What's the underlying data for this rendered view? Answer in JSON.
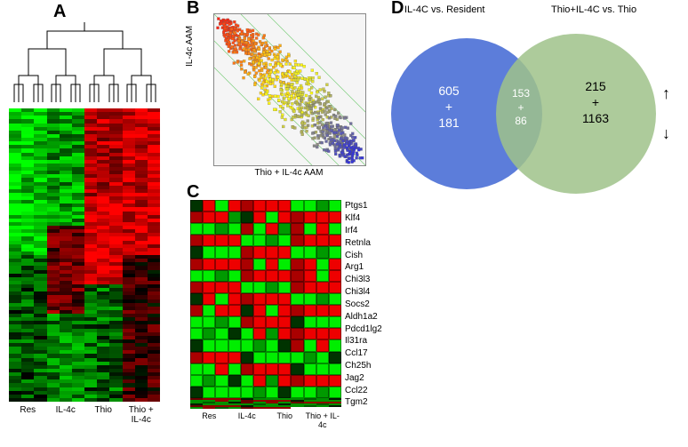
{
  "labels": {
    "A": "A",
    "B": "B",
    "C": "C",
    "D": "D"
  },
  "panelA": {
    "x_labels": [
      "Res",
      "IL-4c",
      "Thio",
      "Thio + IL-4c"
    ],
    "heatmap_colors_lo_hi": [
      "#00ff00",
      "#003300",
      "#000000",
      "#330000",
      "#ff0000"
    ],
    "rows": 80,
    "cols": 12
  },
  "panelB": {
    "xlabel": "Thio + IL-4c AAM",
    "ylabel": "IL-4c AAM",
    "points_pattern": "diagonal-rainbow",
    "n_points": 900,
    "guide_line_color": "#7fcf7f"
  },
  "panelC": {
    "x_labels": [
      "Res",
      "IL-4c",
      "Thio",
      "Thio + IL-4c"
    ],
    "genes": [
      "Ptgs1",
      "Klf4",
      "Irf4",
      "Retnla",
      "Cish",
      "Arg1",
      "Chi3l3",
      "Chi3l4",
      "Socs2",
      "Aldh1a2",
      "Pdcd1lg2",
      "Il31ra",
      "Ccl17",
      "Ch25h",
      "Jag2",
      "Ccl22",
      "Tgm2"
    ],
    "row_patterns": [
      "GRGR-RRRR-GGGG-RRRG",
      "GRGR-RRRR-GGGG-RGRG",
      "RGRG-RRRR-GGGG-RRRR",
      "GGGG-RRRR-GGGG-RRRR",
      "RGRG-RRGR-GGGG-RRRR",
      "RRGR-RRRR-GGGG-RRRR",
      "GRGR-RRRR-GGGG-RGRR",
      "GRGR-RRRR-GGGG-RRRR",
      "GGGG-GGGG-GRGR-RRRR",
      "GGGG-GGGG-RGRG-RRRR",
      "GGGG-GGGG-GGRG-RRRR",
      "GGGG-GGGG-GRGR-RRRR",
      "GGGG-GGGG-GGGG-RRRR",
      "GGGG-GGGG-GGRG-RRRR",
      "GGGG-GGGG-RGRG-RRRR",
      "GGGG-GGGG-GGGG-RRRR",
      "GGGG-GGGG-GRGG-RRRR"
    ],
    "color_map": {
      "G": "#00ee00",
      "R": "#ee0000",
      "B": "#000000",
      "D": "#003300",
      "M": "#552200"
    }
  },
  "panelD": {
    "title_left": "IL-4C vs. Resident",
    "title_right": "Thio+IL-4C vs. Thio",
    "left_up": "605",
    "left_plus": "+",
    "left_down": "181",
    "overlap_up": "153",
    "overlap_plus": "+",
    "overlap_down": "86",
    "right_up": "215",
    "right_plus": "+",
    "right_down": "1163",
    "arrow_up": "↑",
    "arrow_down": "↓",
    "circle_left_color": "#4a6fd6",
    "circle_right_color": "#9fc28a"
  }
}
